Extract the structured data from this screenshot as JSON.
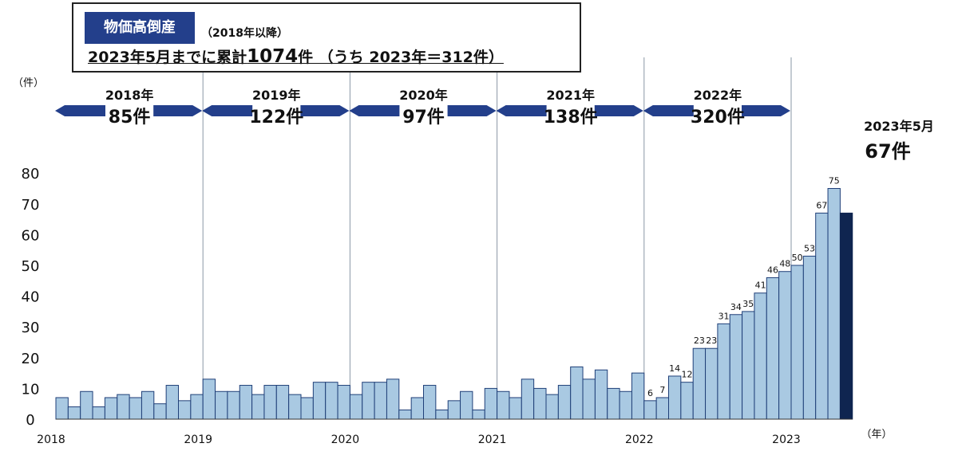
{
  "header": {
    "tag": "物価高倒産",
    "tag_sub": "（2018年以降）",
    "summary_pre": "2023年5月までに累計",
    "summary_big": "1074",
    "summary_post": "件 （うち 2023年＝312件）"
  },
  "colors": {
    "bar": "#a9c9e2",
    "bar_stroke": "#1f3f78",
    "highlight_bar": "#0f2550",
    "arrow": "#233f8b",
    "divider": "#8a97a6",
    "text": "#111111"
  },
  "annual_labels": [
    {
      "year": "2018年",
      "count": "85件"
    },
    {
      "year": "2019年",
      "count": "122件"
    },
    {
      "year": "2020年",
      "count": "97件"
    },
    {
      "year": "2021年",
      "count": "138件"
    },
    {
      "year": "2022年",
      "count": "320件"
    }
  ],
  "callout": {
    "line1": "2023年5月",
    "line2": "67件"
  },
  "chart_data": {
    "type": "bar",
    "ylabel": "（件）",
    "xlabel": "（年）",
    "ylim": [
      0,
      80
    ],
    "yticks": [
      "0",
      "10",
      "20",
      "30",
      "40",
      "50",
      "60",
      "70",
      "80"
    ],
    "xticks": [
      "2018",
      "2019",
      "2020",
      "2021",
      "2022",
      "2023"
    ],
    "grid": false,
    "series": [
      {
        "values": [
          7,
          4,
          9,
          4,
          7,
          8,
          7,
          9,
          5,
          11,
          6,
          8,
          13,
          9,
          9,
          11,
          8,
          11,
          11,
          8,
          7,
          12,
          12,
          11,
          8,
          12,
          12,
          13,
          3,
          7,
          11,
          3,
          6,
          9,
          3,
          10,
          9,
          7,
          13,
          10,
          8,
          11,
          17,
          13,
          16,
          10,
          9,
          15,
          6,
          7,
          14,
          12,
          23,
          23,
          31,
          34,
          35,
          41,
          46,
          48,
          50,
          53,
          67,
          75,
          67
        ],
        "data_labels": [
          "",
          "",
          "",
          "",
          "",
          "",
          "",
          "",
          "",
          "",
          "",
          "",
          "",
          "",
          "",
          "",
          "",
          "",
          "",
          "",
          "",
          "",
          "",
          "",
          "",
          "",
          "",
          "",
          "",
          "",
          "",
          "",
          "",
          "",
          "",
          "",
          "",
          "",
          "",
          "",
          "",
          "",
          "",
          "",
          "",
          "",
          "",
          "",
          "6",
          "7",
          "14",
          "12",
          "23",
          "23",
          "31",
          "34",
          "35",
          "41",
          "46",
          "48",
          "50",
          "53",
          "67",
          "75",
          ""
        ]
      }
    ]
  }
}
